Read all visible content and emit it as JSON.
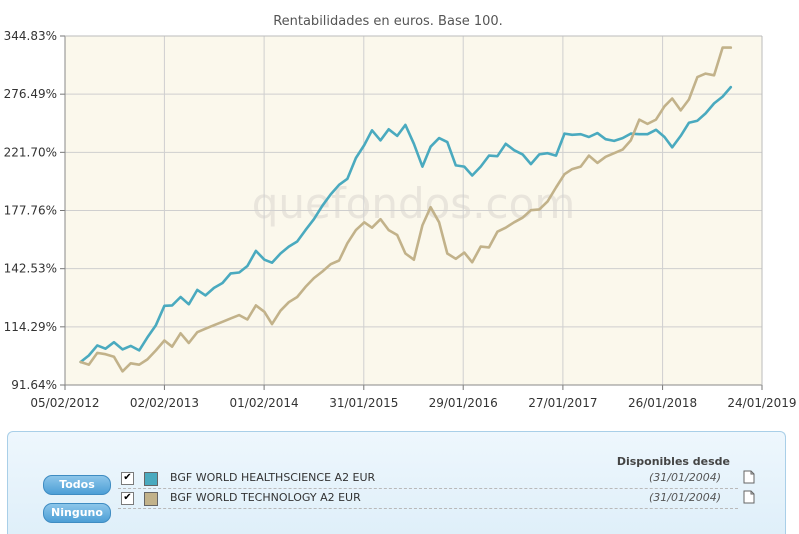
{
  "chart_data": {
    "type": "line",
    "title": "Rentabilidades en euros. Base 100.",
    "watermark": "quefondos.com",
    "background": "#fbf8ec",
    "y_scale": "log",
    "ylim": [
      91.64,
      344.83
    ],
    "y_ticks": [
      "91.64%",
      "114.29%",
      "142.53%",
      "177.76%",
      "221.70%",
      "276.49%",
      "344.83%"
    ],
    "x_ticks": [
      "05/02/2012",
      "02/02/2013",
      "01/02/2014",
      "31/01/2015",
      "29/01/2016",
      "27/01/2017",
      "26/01/2018",
      "24/01/2019"
    ],
    "series": [
      {
        "name": "BGF WORLD HEALTHSCIENCE A2 EUR",
        "color": "#4aaabf",
        "x": [
          "2012-04-02",
          "2012-05-02",
          "2012-06-02",
          "2012-07-02",
          "2012-08-02",
          "2012-09-02",
          "2012-10-02",
          "2012-11-02",
          "2012-12-02",
          "2013-01-02",
          "2013-02-02",
          "2013-03-02",
          "2013-04-02",
          "2013-05-02",
          "2013-06-02",
          "2013-07-02",
          "2013-08-02",
          "2013-09-02",
          "2013-10-02",
          "2013-11-02",
          "2013-12-02",
          "2014-01-02",
          "2014-02-02",
          "2014-03-02",
          "2014-04-02",
          "2014-05-02",
          "2014-06-02",
          "2014-07-02",
          "2014-08-02",
          "2014-09-02",
          "2014-10-02",
          "2014-11-02",
          "2014-12-02",
          "2015-01-02",
          "2015-02-02",
          "2015-03-02",
          "2015-04-02",
          "2015-05-02",
          "2015-06-02",
          "2015-07-02",
          "2015-08-02",
          "2015-09-02",
          "2015-10-02",
          "2015-11-02",
          "2015-12-02",
          "2016-01-02",
          "2016-02-02",
          "2016-03-02",
          "2016-04-02",
          "2016-05-02",
          "2016-06-02",
          "2016-07-02",
          "2016-08-02",
          "2016-09-02",
          "2016-10-02",
          "2016-11-02",
          "2016-12-02",
          "2017-01-02",
          "2017-02-02",
          "2017-03-02",
          "2017-04-02",
          "2017-05-02",
          "2017-06-02",
          "2017-07-02",
          "2017-08-02",
          "2017-09-02",
          "2017-10-02",
          "2017-11-02",
          "2017-12-02",
          "2018-01-02",
          "2018-02-02",
          "2018-03-02",
          "2018-04-02",
          "2018-05-02",
          "2018-06-02",
          "2018-07-02",
          "2018-08-02",
          "2018-09-02",
          "2018-10-02"
        ],
        "values": [
          100,
          102.5,
          106.5,
          105.2,
          107.8,
          104.9,
          106.3,
          104.5,
          109.8,
          115.0,
          123.8,
          124.0,
          128.0,
          124.5,
          131.5,
          128.8,
          132.5,
          135.0,
          140.0,
          140.5,
          144.0,
          152.5,
          147.5,
          145.8,
          151.0,
          155.0,
          158.0,
          165.0,
          172.0,
          181.0,
          189.0,
          196.0,
          200.5,
          217.0,
          228.0,
          241.0,
          232.0,
          242.0,
          236.0,
          246.0,
          229.0,
          210.0,
          226.5,
          234.0,
          230.5,
          211.0,
          210.0,
          203.0,
          210.0,
          219.0,
          218.5,
          229.0,
          223.5,
          220.0,
          212.0,
          220.0,
          221.0,
          219.0,
          238.0,
          237.0,
          237.5,
          235.0,
          238.5,
          233.0,
          231.5,
          234.0,
          238.0,
          237.5,
          237.5,
          241.5,
          235.0,
          226.0,
          236.0,
          248.0,
          250.0,
          257.0,
          267.0,
          274.0,
          284.0
        ]
      },
      {
        "name": "BGF WORLD TECHNOLOGY A2 EUR",
        "color": "#c2b28a",
        "x": [
          "2012-04-02",
          "2012-05-02",
          "2012-06-02",
          "2012-07-02",
          "2012-08-02",
          "2012-09-02",
          "2012-10-02",
          "2012-11-02",
          "2012-12-02",
          "2013-01-02",
          "2013-02-02",
          "2013-03-02",
          "2013-04-02",
          "2013-05-02",
          "2013-06-02",
          "2013-07-02",
          "2013-08-02",
          "2013-09-02",
          "2013-10-02",
          "2013-11-02",
          "2013-12-02",
          "2014-01-02",
          "2014-02-02",
          "2014-03-02",
          "2014-04-02",
          "2014-05-02",
          "2014-06-02",
          "2014-07-02",
          "2014-08-02",
          "2014-09-02",
          "2014-10-02",
          "2014-11-02",
          "2014-12-02",
          "2015-01-02",
          "2015-02-02",
          "2015-03-02",
          "2015-04-02",
          "2015-05-02",
          "2015-06-02",
          "2015-07-02",
          "2015-08-02",
          "2015-09-02",
          "2015-10-02",
          "2015-11-02",
          "2015-12-02",
          "2016-01-02",
          "2016-02-02",
          "2016-03-02",
          "2016-04-02",
          "2016-05-02",
          "2016-06-02",
          "2016-07-02",
          "2016-08-02",
          "2016-09-02",
          "2016-10-02",
          "2016-11-02",
          "2016-12-02",
          "2017-01-02",
          "2017-02-02",
          "2017-03-02",
          "2017-04-02",
          "2017-05-02",
          "2017-06-02",
          "2017-07-02",
          "2017-08-02",
          "2017-09-02",
          "2017-10-02",
          "2017-11-02",
          "2017-12-02",
          "2018-01-02",
          "2018-02-02",
          "2018-03-02",
          "2018-04-02",
          "2018-05-02",
          "2018-06-02",
          "2018-07-02",
          "2018-08-02",
          "2018-09-02",
          "2018-10-02"
        ],
        "values": [
          100,
          99.0,
          103.5,
          103.0,
          102.0,
          96.5,
          99.5,
          99.0,
          101.0,
          104.5,
          108.5,
          106.0,
          111.5,
          107.5,
          112.0,
          113.5,
          115.0,
          116.5,
          118.0,
          119.5,
          117.5,
          124.0,
          121.0,
          115.5,
          121.5,
          125.5,
          128.0,
          133.0,
          137.5,
          141.0,
          145.0,
          147.0,
          157.0,
          165.0,
          170.0,
          166.5,
          172.0,
          165.0,
          162.0,
          151.0,
          147.5,
          168.0,
          180.0,
          170.0,
          151.0,
          148.0,
          151.5,
          146.0,
          155.0,
          154.5,
          164.0,
          166.5,
          170.0,
          173.0,
          178.0,
          178.5,
          184.0,
          194.0,
          204.0,
          208.0,
          210.0,
          219.0,
          213.0,
          218.0,
          221.0,
          224.0,
          232.0,
          251.0,
          247.0,
          251.0,
          264.0,
          272.0,
          260.0,
          271.0,
          295.0,
          299.0,
          297.0,
          330.0,
          330.0
        ]
      }
    ]
  },
  "legend_panel": {
    "header": "Disponibles desde",
    "buttons": {
      "all": "Todos",
      "none": "Ninguno"
    },
    "rows": [
      {
        "name": "BGF WORLD HEALTHSCIENCE A2 EUR",
        "since": "(31/01/2004)",
        "color": "#4aaabf",
        "checked": true,
        "icon": "document-icon"
      },
      {
        "name": "BGF WORLD TECHNOLOGY A2 EUR",
        "since": "(31/01/2004)",
        "color": "#c2b28a",
        "checked": true,
        "icon": "document-icon"
      }
    ]
  }
}
